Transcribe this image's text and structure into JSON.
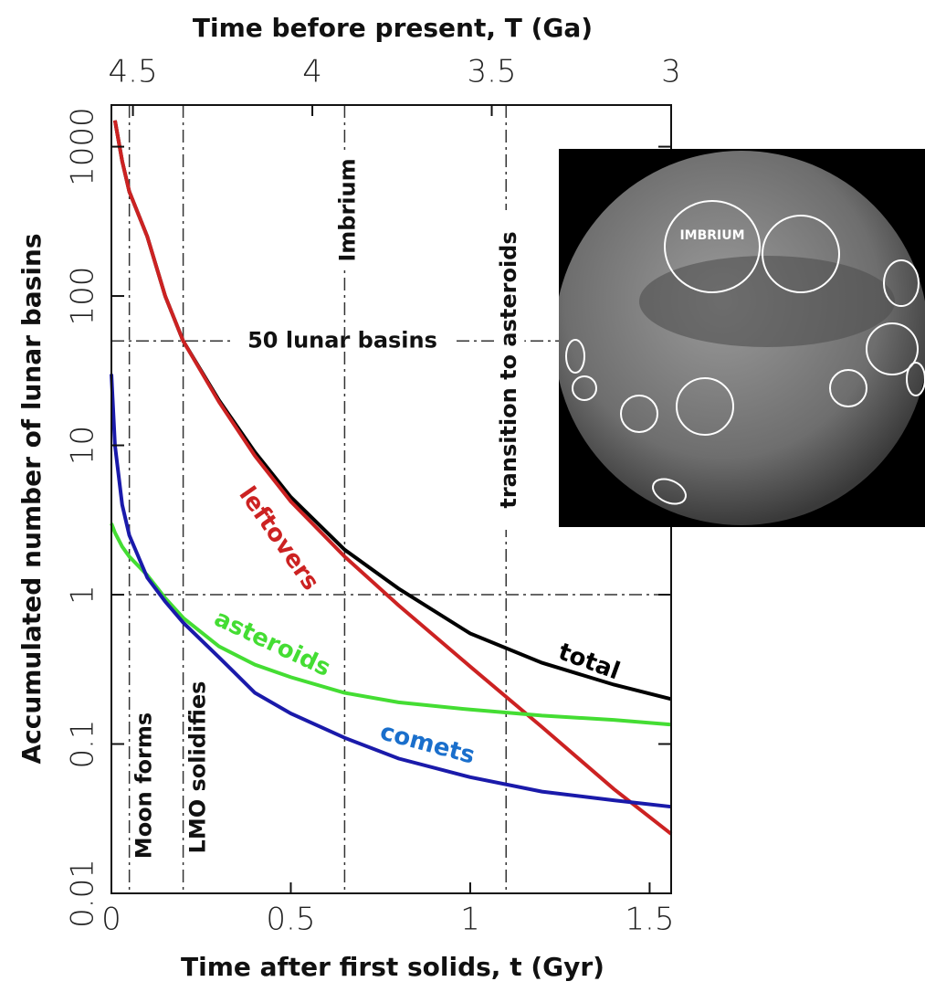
{
  "chart_data": {
    "type": "line",
    "title": "Time before present, T (Ga)",
    "xlabel": "Time after first solids, t (Gyr)",
    "ylabel": "Accumulated number of lunar basins",
    "log_y": true,
    "xlim": [
      0,
      1.56
    ],
    "xticks": [
      0,
      0.5,
      1,
      1.5
    ],
    "x2lim": [
      4.56,
      3.0
    ],
    "x2ticks": [
      4.5,
      4,
      3.5,
      3
    ],
    "ylim": [
      0.01,
      1900
    ],
    "yticks": [
      0.01,
      0.1,
      1,
      10,
      100,
      1000
    ],
    "x": [
      0,
      0.01,
      0.03,
      0.05,
      0.1,
      0.15,
      0.2,
      0.3,
      0.4,
      0.5,
      0.65,
      0.8,
      1.0,
      1.2,
      1.4,
      1.56
    ],
    "series": [
      {
        "name": "total",
        "color": "#000000",
        "values": [
          null,
          1500,
          800,
          500,
          250,
          100,
          50,
          20,
          9,
          4.5,
          2,
          1.1,
          0.55,
          0.35,
          0.25,
          0.2
        ]
      },
      {
        "name": "leftovers",
        "color": "#cc2222",
        "values": [
          null,
          1500,
          800,
          500,
          250,
          100,
          50,
          19.5,
          8.5,
          4.2,
          1.8,
          0.85,
          0.33,
          0.13,
          0.05,
          0.025
        ]
      },
      {
        "name": "asteroids",
        "color": "#44dd33",
        "values": [
          3,
          2.6,
          2.1,
          1.8,
          1.35,
          0.95,
          0.7,
          0.45,
          0.34,
          0.28,
          0.22,
          0.19,
          0.17,
          0.155,
          0.145,
          0.135
        ]
      },
      {
        "name": "comets",
        "color": "#1a1aaa",
        "values": [
          30,
          10,
          4,
          2.5,
          1.3,
          0.9,
          0.65,
          0.38,
          0.22,
          0.16,
          0.11,
          0.08,
          0.06,
          0.048,
          0.042,
          0.038
        ]
      }
    ],
    "vlines": [
      {
        "value": 0.05,
        "label": "Moon forms"
      },
      {
        "value": 0.2,
        "label": "LMO solidifies"
      },
      {
        "value": 0.65,
        "label": "Imbrium"
      },
      {
        "value": 1.1,
        "label": "transition to asteroids"
      }
    ],
    "hlines": [
      {
        "value": 50,
        "label": "50 lunar basins"
      },
      {
        "value": 1
      }
    ],
    "inset": {
      "label": "IMBRIUM"
    }
  }
}
